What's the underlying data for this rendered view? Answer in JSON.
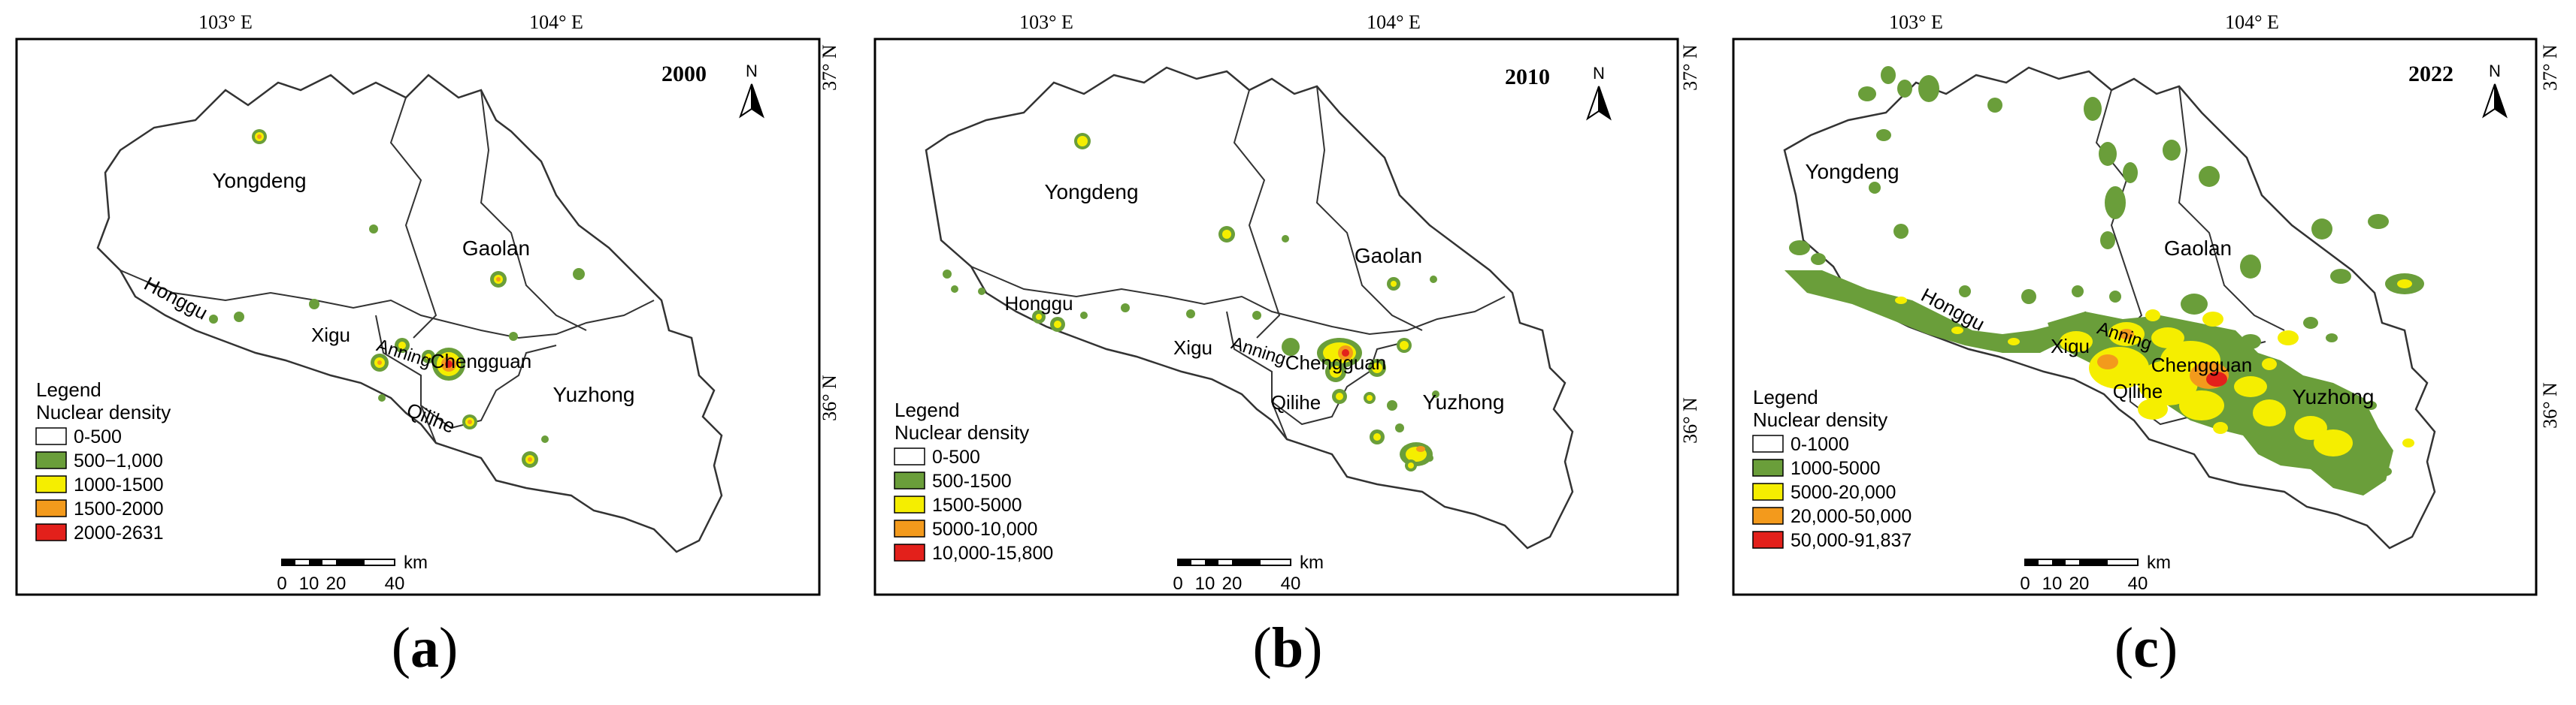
{
  "panels": [
    {
      "id": "a",
      "caption_letter": "a",
      "year": "2000",
      "lon_labels": [
        "103° E",
        "104° E"
      ],
      "lat_labels": [
        "37° N",
        "36° N"
      ],
      "north": "N",
      "places": [
        "Yongdeng",
        "Gaolan",
        "Honggu",
        "Xigu",
        "Anning",
        "Chengguan",
        "Qilihe",
        "Yuzhong"
      ],
      "legend_title": "Legend",
      "legend_subtitle": "Nuclear density",
      "legend_items": [
        {
          "label": "0-500",
          "color": "#ffffff"
        },
        {
          "label": "500−1,000",
          "color": "#6a9e3a"
        },
        {
          "label": "1000-1500",
          "color": "#f5ee00"
        },
        {
          "label": "1500-2000",
          "color": "#f39a1c"
        },
        {
          "label": "2000-2631",
          "color": "#e3201b"
        }
      ],
      "scale": {
        "unit": "km",
        "ticks": [
          "0",
          "10",
          "20",
          "40"
        ]
      }
    },
    {
      "id": "b",
      "caption_letter": "b",
      "year": "2010",
      "lon_labels": [
        "103° E",
        "104° E"
      ],
      "lat_labels": [
        "37° N",
        "36° N"
      ],
      "north": "N",
      "places": [
        "Yongdeng",
        "Gaolan",
        "Honggu",
        "Xigu",
        "Anning",
        "Chengguan",
        "Qilihe",
        "Yuzhong"
      ],
      "legend_title": "Legend",
      "legend_subtitle": "Nuclear density",
      "legend_items": [
        {
          "label": "0-500",
          "color": "#ffffff"
        },
        {
          "label": "500-1500",
          "color": "#6a9e3a"
        },
        {
          "label": "1500-5000",
          "color": "#f5ee00"
        },
        {
          "label": "5000-10,000",
          "color": "#f39a1c"
        },
        {
          "label": "10,000-15,800",
          "color": "#e3201b"
        }
      ],
      "scale": {
        "unit": "km",
        "ticks": [
          "0",
          "10",
          "20",
          "40"
        ]
      }
    },
    {
      "id": "c",
      "caption_letter": "c",
      "year": "2022",
      "lon_labels": [
        "103° E",
        "104° E"
      ],
      "lat_labels": [
        "37° N",
        "36° N"
      ],
      "north": "N",
      "places": [
        "Yongdeng",
        "Gaolan",
        "Honggu",
        "Xigu",
        "Anning",
        "Chengguan",
        "Qilihe",
        "Yuzhong"
      ],
      "legend_title": "Legend",
      "legend_subtitle": "Nuclear density",
      "legend_items": [
        {
          "label": "0-1000",
          "color": "#ffffff"
        },
        {
          "label": "1000-5000",
          "color": "#6a9e3a"
        },
        {
          "label": "5000-20,000",
          "color": "#f5ee00"
        },
        {
          "label": "20,000-50,000",
          "color": "#f39a1c"
        },
        {
          "label": "50,000-91,837",
          "color": "#e3201b"
        }
      ],
      "scale": {
        "unit": "km",
        "ticks": [
          "0",
          "10",
          "20",
          "40"
        ]
      }
    }
  ]
}
